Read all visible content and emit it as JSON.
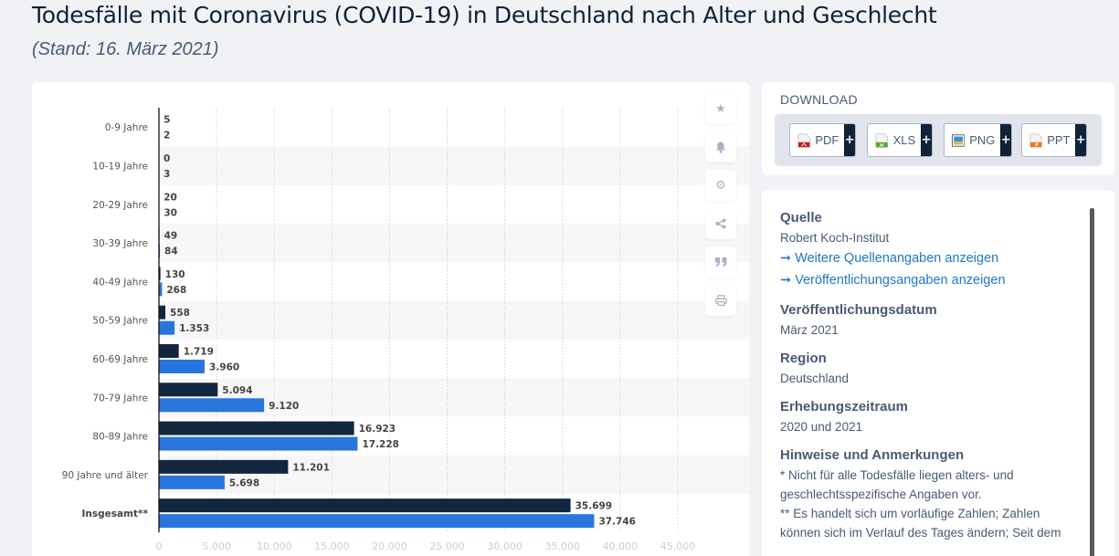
{
  "header": {
    "title": "Todesfälle mit Coronavirus (COVID-19) in Deutschland nach Alter und Geschlecht",
    "subtitle": "(Stand: 16. März 2021)"
  },
  "colors": {
    "series_dark": "#12263f",
    "series_blue": "#2876dd",
    "link": "#1e78c8",
    "stripe": "#f7f7f7"
  },
  "chart_data": {
    "type": "bar",
    "orientation": "horizontal",
    "categories": [
      "0-9 Jahre",
      "10-19 Jahre",
      "20-29 Jahre",
      "30-39 Jahre",
      "40-49 Jahre",
      "50-59 Jahre",
      "60-69 Jahre",
      "70-79 Jahre",
      "80-89 Jahre",
      "90 Jahre und älter",
      "Insgesamt**"
    ],
    "series": [
      {
        "name": "series-1",
        "color": "#12263f",
        "values": [
          5,
          0,
          20,
          49,
          130,
          558,
          1719,
          5094,
          16923,
          11201,
          35699
        ],
        "labels": [
          "5",
          "0",
          "20",
          "49",
          "130",
          "558",
          "1.719",
          "5.094",
          "16.923",
          "11.201",
          "35.699"
        ]
      },
      {
        "name": "series-2",
        "color": "#2876dd",
        "values": [
          2,
          3,
          30,
          84,
          268,
          1353,
          3960,
          9120,
          17228,
          5698,
          37746
        ],
        "labels": [
          "2",
          "3",
          "30",
          "84",
          "268",
          "1.353",
          "3.960",
          "9.120",
          "17.228",
          "5.698",
          "37.746"
        ]
      }
    ],
    "xlim": [
      0,
      45000
    ],
    "xticks": [
      0,
      5000,
      10000,
      15000,
      20000,
      25000,
      30000,
      35000,
      40000,
      45000
    ],
    "xtick_labels": [
      "0",
      "5.000",
      "10.000",
      "15.000",
      "20.000",
      "25.000",
      "30.000",
      "35.000",
      "40.000",
      "45.000"
    ],
    "grid": "vertical-dotted",
    "xlabel": "",
    "ylabel": ""
  },
  "tools": [
    {
      "name": "star-icon",
      "glyph": "★"
    },
    {
      "name": "bell-icon",
      "glyph": "🔔"
    },
    {
      "name": "gear-icon",
      "glyph": "⚙"
    },
    {
      "name": "share-icon",
      "glyph": "<"
    },
    {
      "name": "quote-icon",
      "glyph": "❞"
    },
    {
      "name": "print-icon",
      "glyph": "⎙"
    }
  ],
  "download": {
    "title": "DOWNLOAD",
    "buttons": [
      {
        "label": "PDF",
        "plus": "+"
      },
      {
        "label": "XLS",
        "plus": "+"
      },
      {
        "label": "PNG",
        "plus": "+"
      },
      {
        "label": "PPT",
        "plus": "+"
      }
    ]
  },
  "info": {
    "source_heading": "Quelle",
    "source_value": "Robert Koch-Institut",
    "link1": "Weitere Quellenangaben anzeigen",
    "link2": "Veröffentlichungsangaben anzeigen",
    "link_arrow": "➞",
    "pubdate_heading": "Veröffentlichungsdatum",
    "pubdate_value": "März 2021",
    "region_heading": "Region",
    "region_value": "Deutschland",
    "period_heading": "Erhebungszeitraum",
    "period_value": "2020 und 2021",
    "notes_heading": "Hinweise und Anmerkungen",
    "note1": "* Nicht für alle Todesfälle liegen alters- und geschlechtsspezifische Angaben vor.",
    "note2": "** Es handelt sich um vorläufige Zahlen; Zahlen können sich im Verlauf des Tages ändern; Seit dem"
  }
}
